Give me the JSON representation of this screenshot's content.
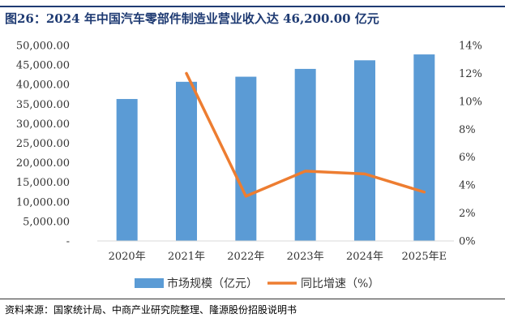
{
  "title": "图26：2024 年中国汽车零部件制造业营业收入达 46,200.00 亿元",
  "source": "资料来源：国家统计局、中商产业研究院整理、隆源股份招股说明书",
  "colors": {
    "bar": "#5b9bd5",
    "line": "#ed7d31",
    "accent": "#1f3b73"
  },
  "chart_data": {
    "type": "bar+line",
    "categories": [
      "2020年",
      "2021年",
      "2022年",
      "2023年",
      "2024年",
      "2025年E"
    ],
    "series": [
      {
        "name": "市场规模（亿元）",
        "type": "bar",
        "axis": "left",
        "values": [
          36300,
          40700,
          42000,
          44000,
          46200,
          47700
        ]
      },
      {
        "name": "同比增速（%）",
        "type": "line",
        "axis": "right",
        "values": [
          null,
          12.0,
          3.2,
          5.0,
          4.8,
          3.5
        ]
      }
    ],
    "y_left": {
      "lim": [
        0,
        50000
      ],
      "ticks": [
        "-",
        "5,000.00",
        "10,000.00",
        "15,000.00",
        "20,000.00",
        "25,000.00",
        "30,000.00",
        "35,000.00",
        "40,000.00",
        "45,000.00",
        "50,000.00"
      ]
    },
    "y_right": {
      "lim": [
        0,
        14
      ],
      "ticks": [
        "0%",
        "2%",
        "4%",
        "6%",
        "8%",
        "10%",
        "12%",
        "14%"
      ]
    },
    "legend_position": "bottom",
    "grid": false
  }
}
